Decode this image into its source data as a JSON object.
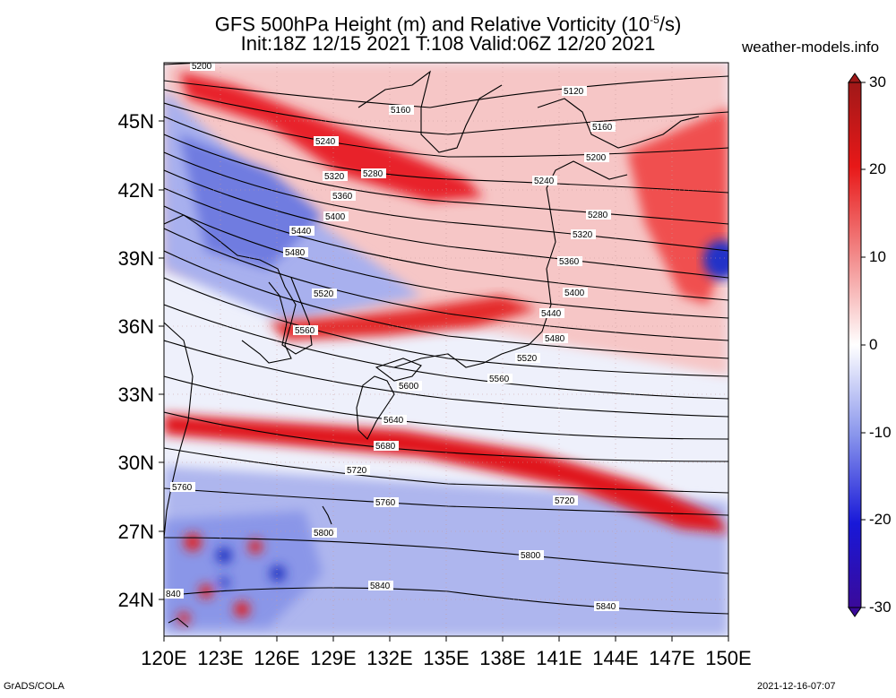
{
  "title": {
    "line1_main": "GFS 500hPa Height (m) and Relative Vorticity (10",
    "line1_exp": "-5",
    "line1_tail": "/s)",
    "line2": "Init:18Z 12/15 2021 T:108 Valid:06Z 12/20 2021"
  },
  "source": "weather-models.info",
  "footer": {
    "left": "GrADS/COLA",
    "right": "2021-12-16-07:07"
  },
  "lat_labels": [
    "45N",
    "42N",
    "39N",
    "36N",
    "33N",
    "30N",
    "27N",
    "24N"
  ],
  "lon_labels": [
    "120E",
    "123E",
    "126E",
    "129E",
    "132E",
    "135E",
    "138E",
    "141E",
    "144E",
    "147E",
    "150E"
  ],
  "colorbar": {
    "ticks": [
      "30",
      "20",
      "10",
      "0",
      "-10",
      "-20",
      "-30"
    ]
  },
  "contour_labels": [
    "5200",
    "5120",
    "5160",
    "5160",
    "5240",
    "5200",
    "5320",
    "5280",
    "5240",
    "5360",
    "5280",
    "5400",
    "5320",
    "5440",
    "5360",
    "5480",
    "5400",
    "5520",
    "5440",
    "5560",
    "5480",
    "5520",
    "5600",
    "5560",
    "5640",
    "5680",
    "5720",
    "5720",
    "5760",
    "5760",
    "5800",
    "5800",
    "5840",
    "5840",
    "840"
  ],
  "colors": {
    "positive": "#e8101a",
    "negative": "#2b3bd8",
    "background": "#ffffff"
  }
}
